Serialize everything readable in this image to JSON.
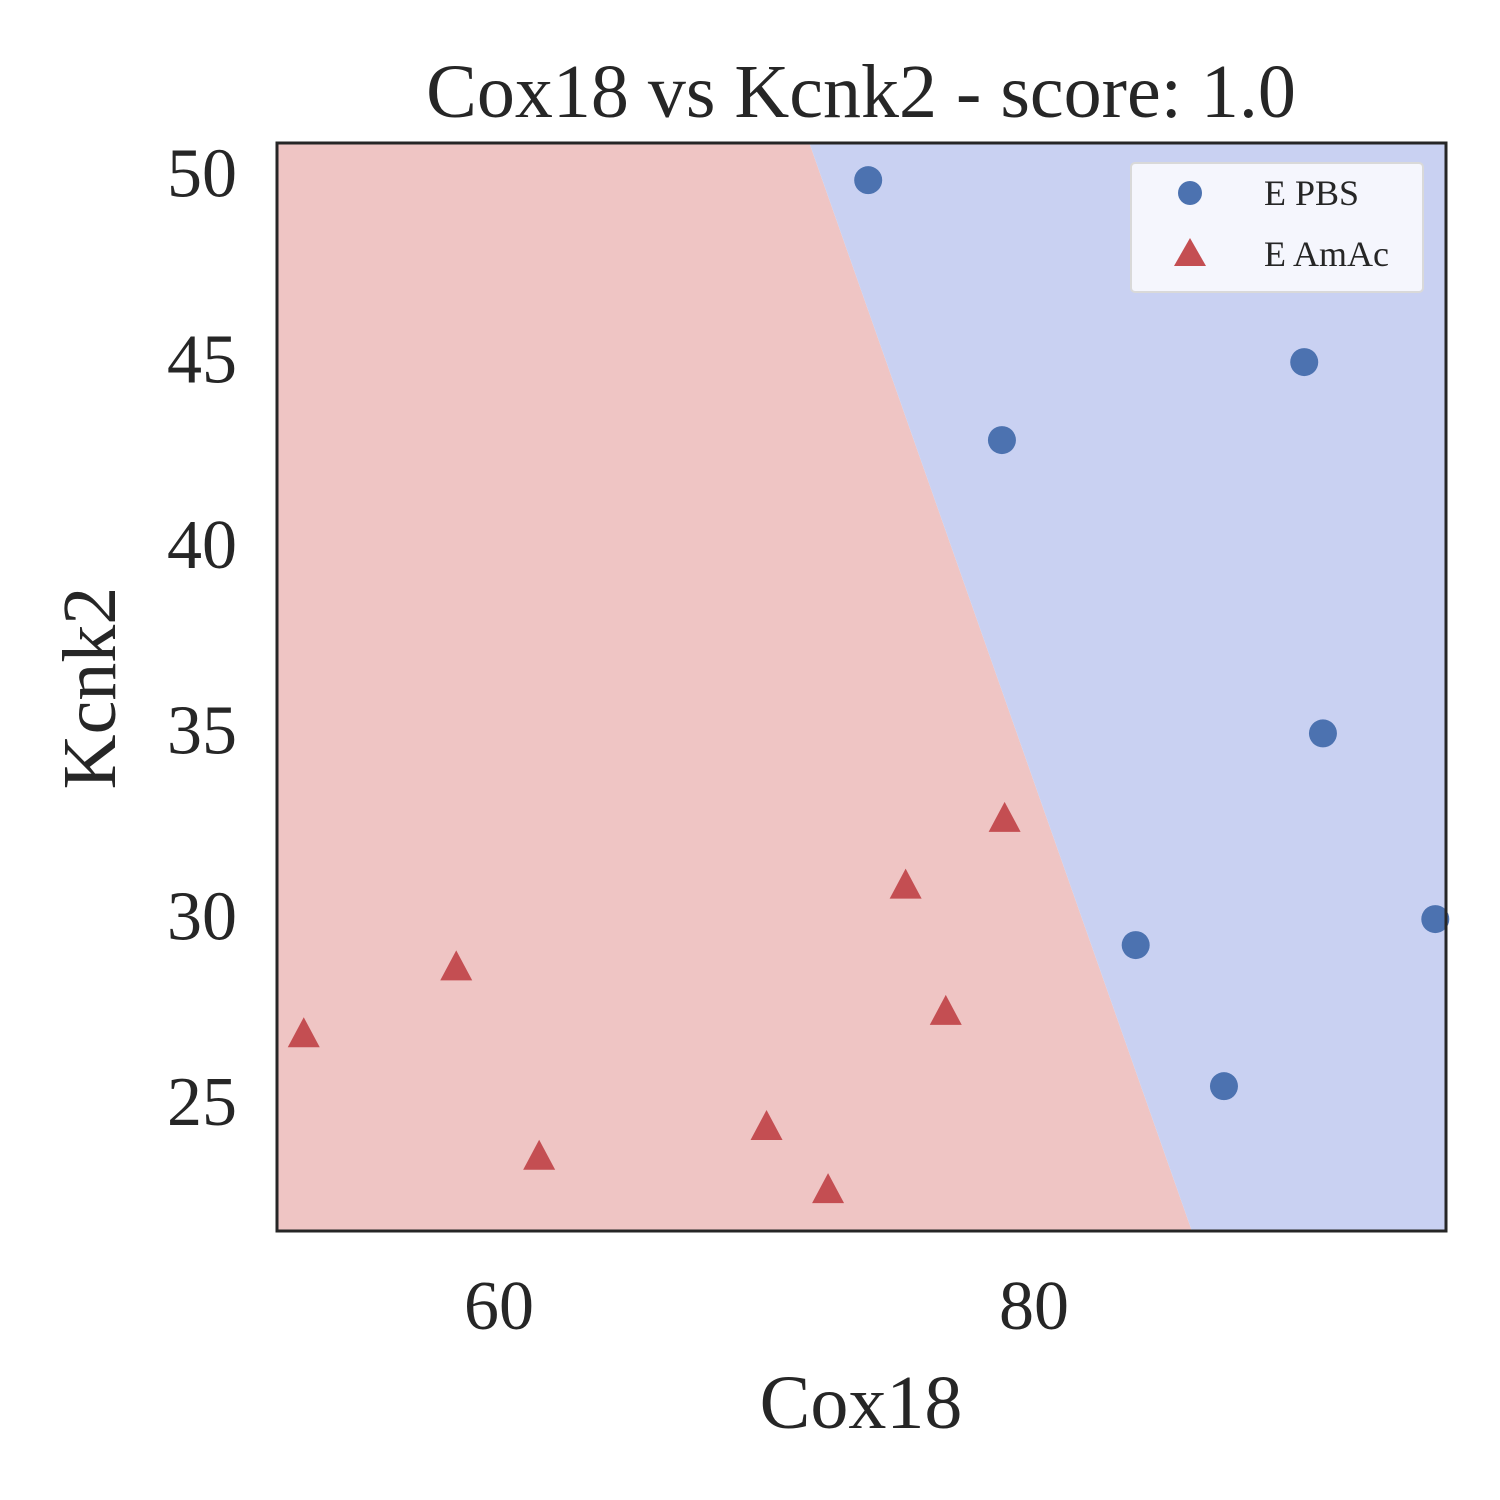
{
  "chart_data": {
    "type": "scatter",
    "title": "Cox18 vs Kcnk2 - score: 1.0",
    "xlabel": "Cox18",
    "ylabel": "Kcnk2",
    "xlim": [
      51.7,
      95.4
    ],
    "ylim": [
      21.5,
      50.8
    ],
    "xticks": [
      60,
      80
    ],
    "yticks": [
      25,
      30,
      35,
      40,
      45,
      50
    ],
    "grid": false,
    "legend_position": "top-right",
    "decision_boundary": {
      "points": [
        [
          71.6,
          50.8
        ],
        [
          85.9,
          21.5
        ]
      ],
      "left_region_color": "#efc5c4",
      "right_region_color": "#c9d1f2"
    },
    "series": [
      {
        "name": "E PBS",
        "marker": "circle",
        "color": "#4c72b0",
        "x": [
          73.8,
          78.8,
          90.1,
          90.8,
          95.0,
          83.8,
          87.1
        ],
        "y": [
          49.8,
          42.8,
          44.9,
          34.9,
          29.9,
          29.2,
          25.4
        ]
      },
      {
        "name": "E AmAc",
        "marker": "triangle",
        "color": "#c44e52",
        "x": [
          52.7,
          58.4,
          61.5,
          70.0,
          72.3,
          75.2,
          76.7,
          78.9
        ],
        "y": [
          26.8,
          28.6,
          23.5,
          24.3,
          22.6,
          30.8,
          27.4,
          32.6
        ]
      }
    ]
  }
}
